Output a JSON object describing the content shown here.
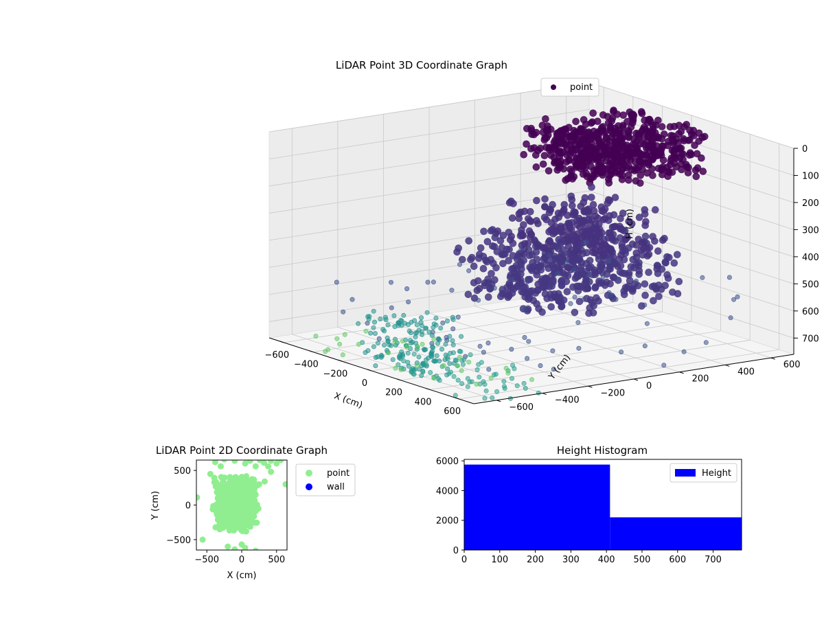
{
  "chart_data": [
    {
      "type": "scatter3d",
      "title": "LiDAR Point 3D Coordinate Graph",
      "xlabel": "X (cm)",
      "ylabel": "Y (cm)",
      "zlabel": "H (cm)",
      "xlim": [
        -700,
        700
      ],
      "ylim": [
        -700,
        700
      ],
      "zlim": [
        0,
        760
      ],
      "z_inverted": true,
      "xticks": [
        -600,
        -400,
        -200,
        0,
        200,
        400,
        600
      ],
      "yticks": [
        -600,
        -400,
        -200,
        0,
        200,
        400,
        600
      ],
      "zticks": [
        0,
        100,
        200,
        300,
        400,
        500,
        600,
        700
      ],
      "colormap": [
        "#440154",
        "#3b528b",
        "#21918c",
        "#5ec962",
        "#fde725"
      ],
      "legend": {
        "entries": [
          "point"
        ],
        "location": "top-right",
        "marker_color": "#440154"
      },
      "grid": true,
      "clusters": [
        {
          "kind": "blob",
          "x": [
            -400,
            150
          ],
          "y": [
            200,
            700
          ],
          "z": [
            30,
            200
          ],
          "count": 550,
          "color": "#440154"
        },
        {
          "kind": "blob",
          "x": [
            -300,
            350
          ],
          "y": [
            -150,
            450
          ],
          "z": [
            380,
            600
          ],
          "count": 450,
          "color": "#453781"
        },
        {
          "kind": "blob",
          "x": [
            -200,
            300
          ],
          "y": [
            -50,
            400
          ],
          "z": [
            250,
            420
          ],
          "count": 200,
          "color": "#46327e"
        },
        {
          "kind": "sparse",
          "x": [
            -700,
            700
          ],
          "y": [
            -700,
            700
          ],
          "z": [
            500,
            760
          ],
          "count": 70,
          "color": "#3b528b"
        },
        {
          "kind": "wall",
          "x": [
            -80,
            250
          ],
          "y": [
            -700,
            -450
          ],
          "z": [
            560,
            760
          ],
          "count": 150,
          "color": "#21918c"
        },
        {
          "kind": "wall",
          "x": [
            150,
            700
          ],
          "y": [
            -700,
            -400
          ],
          "z": [
            680,
            760
          ],
          "count": 60,
          "color": "#2a9d8c"
        },
        {
          "kind": "sparse",
          "x": [
            -600,
            700
          ],
          "y": [
            -700,
            -300
          ],
          "z": [
            700,
            760
          ],
          "count": 30,
          "color": "#5ec962"
        }
      ]
    },
    {
      "type": "scatter",
      "title": "LiDAR Point 2D Coordinate Graph",
      "xlabel": "X (cm)",
      "ylabel": "Y (cm)",
      "xlim": [
        -650,
        650
      ],
      "ylim": [
        -650,
        650
      ],
      "xticks": [
        -500,
        0,
        500
      ],
      "yticks": [
        -500,
        0,
        500
      ],
      "legend": {
        "entries": [
          {
            "name": "point",
            "color": "#90ee90"
          },
          {
            "name": "wall",
            "color": "#0000ff"
          }
        ],
        "location": "outside-right"
      },
      "core": {
        "x": [
          -420,
          250
        ],
        "y": [
          -400,
          450
        ],
        "count": 700
      },
      "outliers": [
        [
          -640,
          110
        ],
        [
          -560,
          -500
        ],
        [
          -380,
          620
        ],
        [
          -300,
          560
        ],
        [
          -250,
          660
        ],
        [
          -100,
          640
        ],
        [
          50,
          600
        ],
        [
          120,
          640
        ],
        [
          200,
          560
        ],
        [
          260,
          650
        ],
        [
          320,
          610
        ],
        [
          380,
          560
        ],
        [
          420,
          640
        ],
        [
          500,
          600
        ],
        [
          560,
          650
        ],
        [
          630,
          300
        ],
        [
          420,
          480
        ],
        [
          330,
          340
        ],
        [
          250,
          300
        ],
        [
          -200,
          -600
        ],
        [
          -100,
          -640
        ],
        [
          0,
          -570
        ],
        [
          50,
          -620
        ],
        [
          200,
          -660
        ],
        [
          -450,
          450
        ],
        [
          -380,
          320
        ],
        [
          200,
          150
        ],
        [
          240,
          -50
        ]
      ]
    },
    {
      "type": "bar",
      "title": "Height Histogram",
      "xlim": [
        0,
        780
      ],
      "ylim": [
        0,
        6100
      ],
      "xticks": [
        0,
        100,
        200,
        300,
        400,
        500,
        600,
        700
      ],
      "yticks": [
        0,
        2000,
        4000,
        6000
      ],
      "bins": [
        {
          "x0": 0,
          "x1": 410,
          "value": 5750
        },
        {
          "x0": 410,
          "x1": 780,
          "value": 2200
        }
      ],
      "color": "#0000ff",
      "legend": {
        "entries": [
          "Height"
        ],
        "location": "top-right"
      }
    }
  ]
}
